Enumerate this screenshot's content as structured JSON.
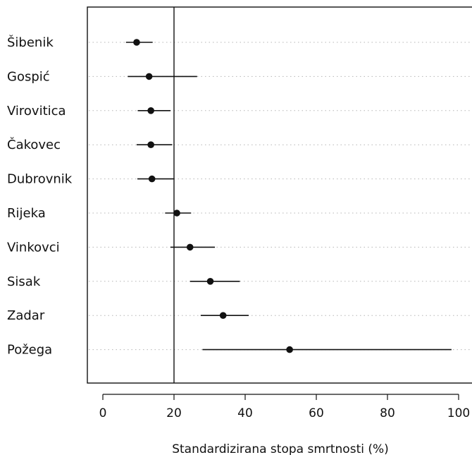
{
  "chart_data": {
    "type": "scatter",
    "subtype": "forest-plot",
    "xlabel": "Standardizirana stopa smrtnosti (%)",
    "xlim": [
      -4,
      105
    ],
    "xticks": [
      0,
      20,
      40,
      60,
      80,
      100
    ],
    "reference_line": 20,
    "grid": "dotted horizontal guide per row",
    "rows": [
      {
        "label": "Šibenik",
        "value": 9.5,
        "lower": 6.5,
        "upper": 14.0
      },
      {
        "label": "Gospić",
        "value": 13.0,
        "lower": 7.0,
        "upper": 26.5
      },
      {
        "label": "Virovitica",
        "value": 13.5,
        "lower": 9.8,
        "upper": 19.0
      },
      {
        "label": "Čakovec",
        "value": 13.5,
        "lower": 9.5,
        "upper": 19.5
      },
      {
        "label": "Dubrovnik",
        "value": 13.8,
        "lower": 9.7,
        "upper": 20.0
      },
      {
        "label": "Rijeka",
        "value": 20.8,
        "lower": 17.5,
        "upper": 24.8
      },
      {
        "label": "Vinkovci",
        "value": 24.5,
        "lower": 19.0,
        "upper": 31.5
      },
      {
        "label": "Sisak",
        "value": 30.2,
        "lower": 24.5,
        "upper": 38.5
      },
      {
        "label": "Zadar",
        "value": 33.8,
        "lower": 27.5,
        "upper": 41.0
      },
      {
        "label": "Požega",
        "value": 52.5,
        "lower": 28.0,
        "upper": 98.0
      }
    ]
  }
}
